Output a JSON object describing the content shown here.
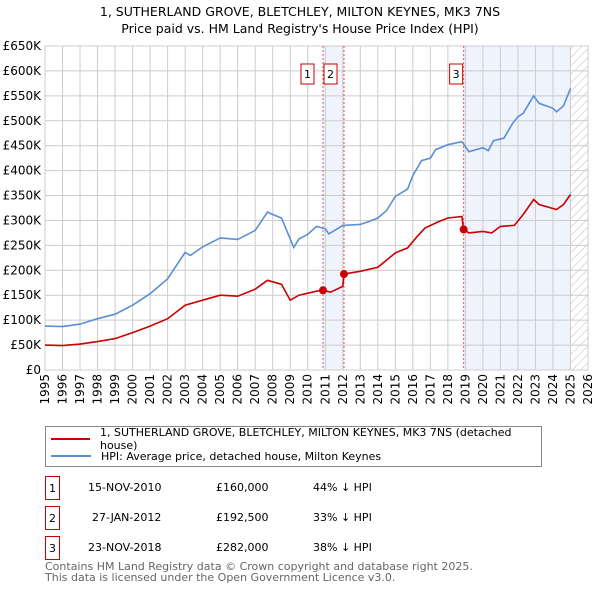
{
  "chart_data": {
    "type": "line",
    "title": "1, SUTHERLAND GROVE, BLETCHLEY, MILTON KEYNES, MK3 7NS",
    "subtitle": "Price paid vs. HM Land Registry's House Price Index (HPI)",
    "xlim": [
      1995,
      2026
    ],
    "ylim": [
      0,
      650000
    ],
    "yticks": [
      "£0",
      "£50K",
      "£100K",
      "£150K",
      "£200K",
      "£250K",
      "£300K",
      "£350K",
      "£400K",
      "£450K",
      "£500K",
      "£550K",
      "£600K",
      "£650K"
    ],
    "xticks": [
      "1995",
      "1996",
      "1997",
      "1998",
      "1999",
      "2000",
      "2001",
      "2002",
      "2003",
      "2004",
      "2005",
      "2006",
      "2007",
      "2008",
      "2009",
      "2010",
      "2011",
      "2012",
      "2013",
      "2014",
      "2015",
      "2016",
      "2017",
      "2018",
      "2019",
      "2020",
      "2021",
      "2022",
      "2023",
      "2024",
      "2025",
      "2026"
    ],
    "grid": true,
    "series": [
      {
        "name": "1, SUTHERLAND GROVE, BLETCHLEY, MILTON KEYNES, MK3 7NS (detached house)",
        "color": "#cc0000",
        "x": [
          1995,
          1996,
          1997,
          1998,
          1999,
          2000,
          2001,
          2002,
          2003,
          2004,
          2005,
          2006,
          2007,
          2007.7,
          2008.5,
          2009,
          2009.5,
          2010.5,
          2010.87,
          2011.3,
          2012.0,
          2012.07,
          2013,
          2014,
          2015,
          2015.7,
          2016.3,
          2016.7,
          2017.5,
          2018,
          2018.8,
          2018.9,
          2019.2,
          2020,
          2020.5,
          2021,
          2021.8,
          2022.3,
          2022.9,
          2023.2,
          2024.2,
          2024.6,
          2025.0
        ],
        "y": [
          50,
          49,
          52,
          57,
          63,
          75,
          88,
          103,
          130,
          140,
          150,
          148,
          162,
          180,
          172,
          140,
          150,
          158,
          160,
          156,
          168,
          192.5,
          198,
          206,
          235,
          245,
          270,
          285,
          298,
          305,
          308,
          282,
          275,
          278,
          275,
          288,
          290,
          312,
          342,
          332,
          322,
          332,
          352
        ]
      },
      {
        "name": "HPI: Average price, detached house, Milton Keynes",
        "color": "#5b8fd4",
        "x": [
          1995,
          1996,
          1997,
          1998,
          1999,
          2000,
          2001,
          2002,
          2003,
          2003.3,
          2004,
          2005,
          2006,
          2007,
          2007.7,
          2008,
          2008.5,
          2009.2,
          2009.5,
          2010,
          2010.5,
          2011,
          2011.2,
          2012,
          2013,
          2013.5,
          2014,
          2014.5,
          2015,
          2015.7,
          2016,
          2016.5,
          2017,
          2017.3,
          2018,
          2018.8,
          2019.2,
          2020,
          2020.3,
          2020.6,
          2021.2,
          2021.7,
          2022,
          2022.3,
          2022.9,
          2023.2,
          2024,
          2024.2,
          2024.6,
          2025.0
        ],
        "y": [
          88,
          87,
          92,
          103,
          112,
          130,
          153,
          183,
          236,
          230,
          247,
          265,
          262,
          280,
          317,
          312,
          305,
          246,
          263,
          272,
          288,
          283,
          273,
          290,
          292,
          298,
          305,
          320,
          348,
          363,
          390,
          420,
          425,
          442,
          452,
          458,
          438,
          446,
          440,
          460,
          465,
          495,
          508,
          515,
          550,
          535,
          525,
          518,
          530,
          565
        ]
      }
    ],
    "y_unit": "thousand GBP",
    "shaded_ranges": [
      [
        2010.87,
        2012.07
      ],
      [
        2018.9,
        2025.0
      ]
    ],
    "forecast_hatch_from": 2025.0,
    "markers": [
      {
        "label": "1",
        "x": 2010.87,
        "y": 160
      },
      {
        "label": "2",
        "x": 2012.07,
        "y": 192.5
      },
      {
        "label": "3",
        "x": 2018.9,
        "y": 282
      }
    ]
  },
  "legend": {
    "red": "1, SUTHERLAND GROVE, BLETCHLEY, MILTON KEYNES, MK3 7NS (detached house)",
    "blue": "HPI: Average price, detached house, Milton Keynes"
  },
  "transactions": [
    {
      "num": "1",
      "date": "15-NOV-2010",
      "price": "£160,000",
      "hpi": "44% ↓ HPI"
    },
    {
      "num": "2",
      "date": "27-JAN-2012",
      "price": "£192,500",
      "hpi": "33% ↓ HPI"
    },
    {
      "num": "3",
      "date": "23-NOV-2018",
      "price": "£282,000",
      "hpi": "38% ↓ HPI"
    }
  ],
  "footer": {
    "line1": "Contains HM Land Registry data © Crown copyright and database right 2025.",
    "line2": "This data is licensed under the Open Government Licence v3.0."
  }
}
